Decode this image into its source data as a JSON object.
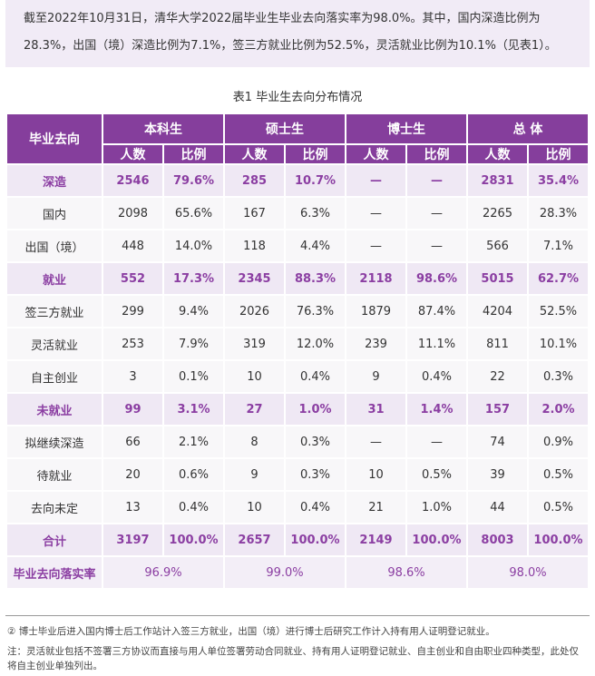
{
  "intro": "截至2022年10月31日，清华大学2022届毕业生毕业去向落实率为98.0%。其中，国内深造比例为28.3%，出国（境）深造比例为7.1%，签三方就业比例为52.5%，灵活就业比例为10.1%（见表1）。",
  "caption": "表1  毕业生去向分布情况",
  "table": {
    "row_header": "毕业去向",
    "groups": [
      "本科生",
      "硕士生",
      "博士生",
      "总  体"
    ],
    "sub": [
      "人数",
      "比例"
    ],
    "rows": [
      {
        "type": "cat",
        "cells": [
          "深造",
          "2546",
          "79.6%",
          "285",
          "10.7%",
          "—",
          "—",
          "2831",
          "35.4%"
        ]
      },
      {
        "type": "sub",
        "cells": [
          "国内",
          "2098",
          "65.6%",
          "167",
          "6.3%",
          "—",
          "—",
          "2265",
          "28.3%"
        ]
      },
      {
        "type": "sub",
        "cells": [
          "出国（境）",
          "448",
          "14.0%",
          "118",
          "4.4%",
          "—",
          "—",
          "566",
          "7.1%"
        ]
      },
      {
        "type": "cat",
        "cells": [
          "就业",
          "552",
          "17.3%",
          "2345",
          "88.3%",
          "2118",
          "98.6%",
          "5015",
          "62.7%"
        ]
      },
      {
        "type": "sub",
        "cells": [
          "签三方就业",
          "299",
          "9.4%",
          "2026",
          "76.3%",
          "1879",
          "87.4%",
          "4204",
          "52.5%"
        ]
      },
      {
        "type": "sub",
        "cells": [
          "灵活就业",
          "253",
          "7.9%",
          "319",
          "12.0%",
          "239",
          "11.1%",
          "811",
          "10.1%"
        ]
      },
      {
        "type": "sub",
        "cells": [
          "自主创业",
          "3",
          "0.1%",
          "10",
          "0.4%",
          "9",
          "0.4%",
          "22",
          "0.3%"
        ]
      },
      {
        "type": "cat",
        "cells": [
          "未就业",
          "99",
          "3.1%",
          "27",
          "1.0%",
          "31",
          "1.4%",
          "157",
          "2.0%"
        ]
      },
      {
        "type": "sub",
        "cells": [
          "拟继续深造",
          "66",
          "2.1%",
          "8",
          "0.3%",
          "—",
          "—",
          "74",
          "0.9%"
        ]
      },
      {
        "type": "sub",
        "cells": [
          "待就业",
          "20",
          "0.6%",
          "9",
          "0.3%",
          "10",
          "0.5%",
          "39",
          "0.5%"
        ]
      },
      {
        "type": "sub",
        "cells": [
          "去向未定",
          "13",
          "0.4%",
          "10",
          "0.4%",
          "21",
          "1.0%",
          "44",
          "0.5%"
        ]
      },
      {
        "type": "cat",
        "cells": [
          "合计",
          "3197",
          "100.0%",
          "2657",
          "100.0%",
          "2149",
          "100.0%",
          "8003",
          "100.0%"
        ]
      }
    ],
    "rate": {
      "label": "毕业去向落实率",
      "values": [
        "96.9%",
        "99.0%",
        "98.6%",
        "98.0%"
      ]
    }
  },
  "notes": [
    "②  博士毕业后进入国内博士后工作站计入签三方就业，出国（境）进行博士后研究工作计入持有用人证明登记就业。",
    "注：灵活就业包括不签署三方协议而直接与用人单位签署劳动合同就业、持有用人证明登记就业、自主创业和自由职业四种类型，此处仅将自主创业单独列出。"
  ],
  "colors": {
    "header": "#853e9c",
    "category_bg": "#efe8f4",
    "category_text": "#8b3ea2",
    "intro_bg": "#f1ebf6"
  }
}
